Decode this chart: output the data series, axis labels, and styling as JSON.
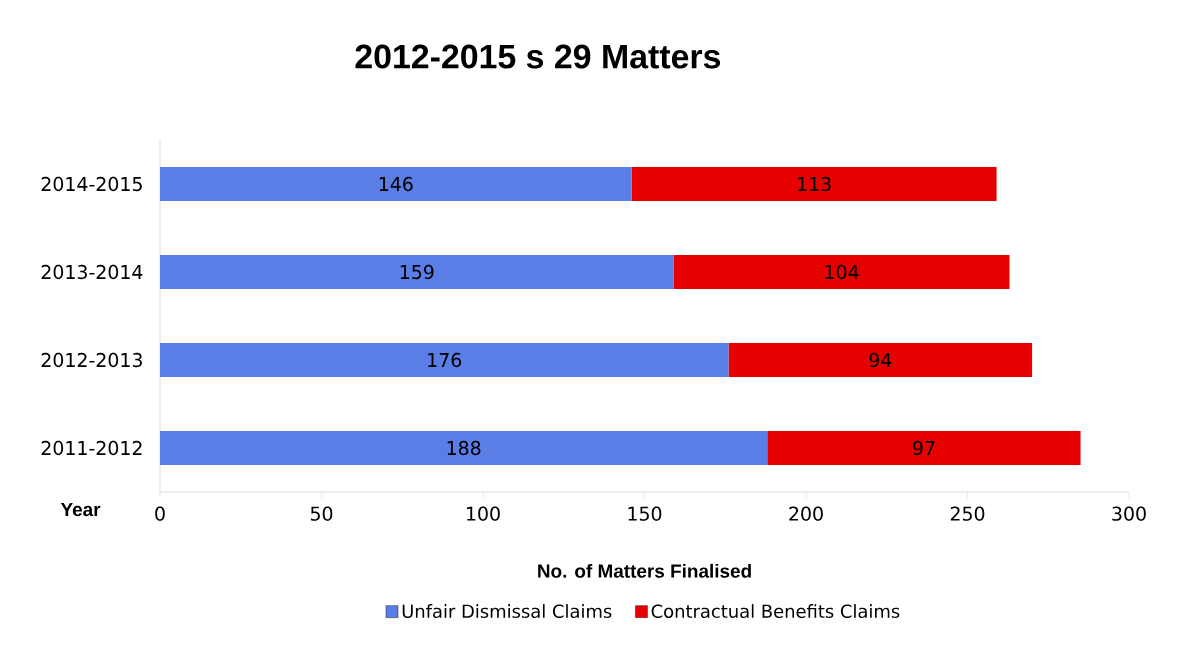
{
  "chart_data": {
    "type": "bar",
    "orientation": "horizontal",
    "stacked": true,
    "title": "2012-2015 s 29 Matters",
    "xlabel": "No. of Matters Finalised",
    "ylabel": "Year",
    "categories": [
      "2014-2015",
      "2013-2014",
      "2012-2013",
      "2011-2012"
    ],
    "series": [
      {
        "name": "Unfair Dismissal Claims",
        "color": "#5a7ee6",
        "values": [
          146,
          159,
          176,
          188
        ]
      },
      {
        "name": "Contractual Benefits Claims",
        "color": "#e60000",
        "values": [
          113,
          104,
          94,
          97
        ]
      }
    ],
    "xlim": [
      0,
      300
    ],
    "xticks": [
      0,
      50,
      100,
      150,
      200,
      250,
      300
    ],
    "data_labels": true,
    "legend": "bottom"
  }
}
